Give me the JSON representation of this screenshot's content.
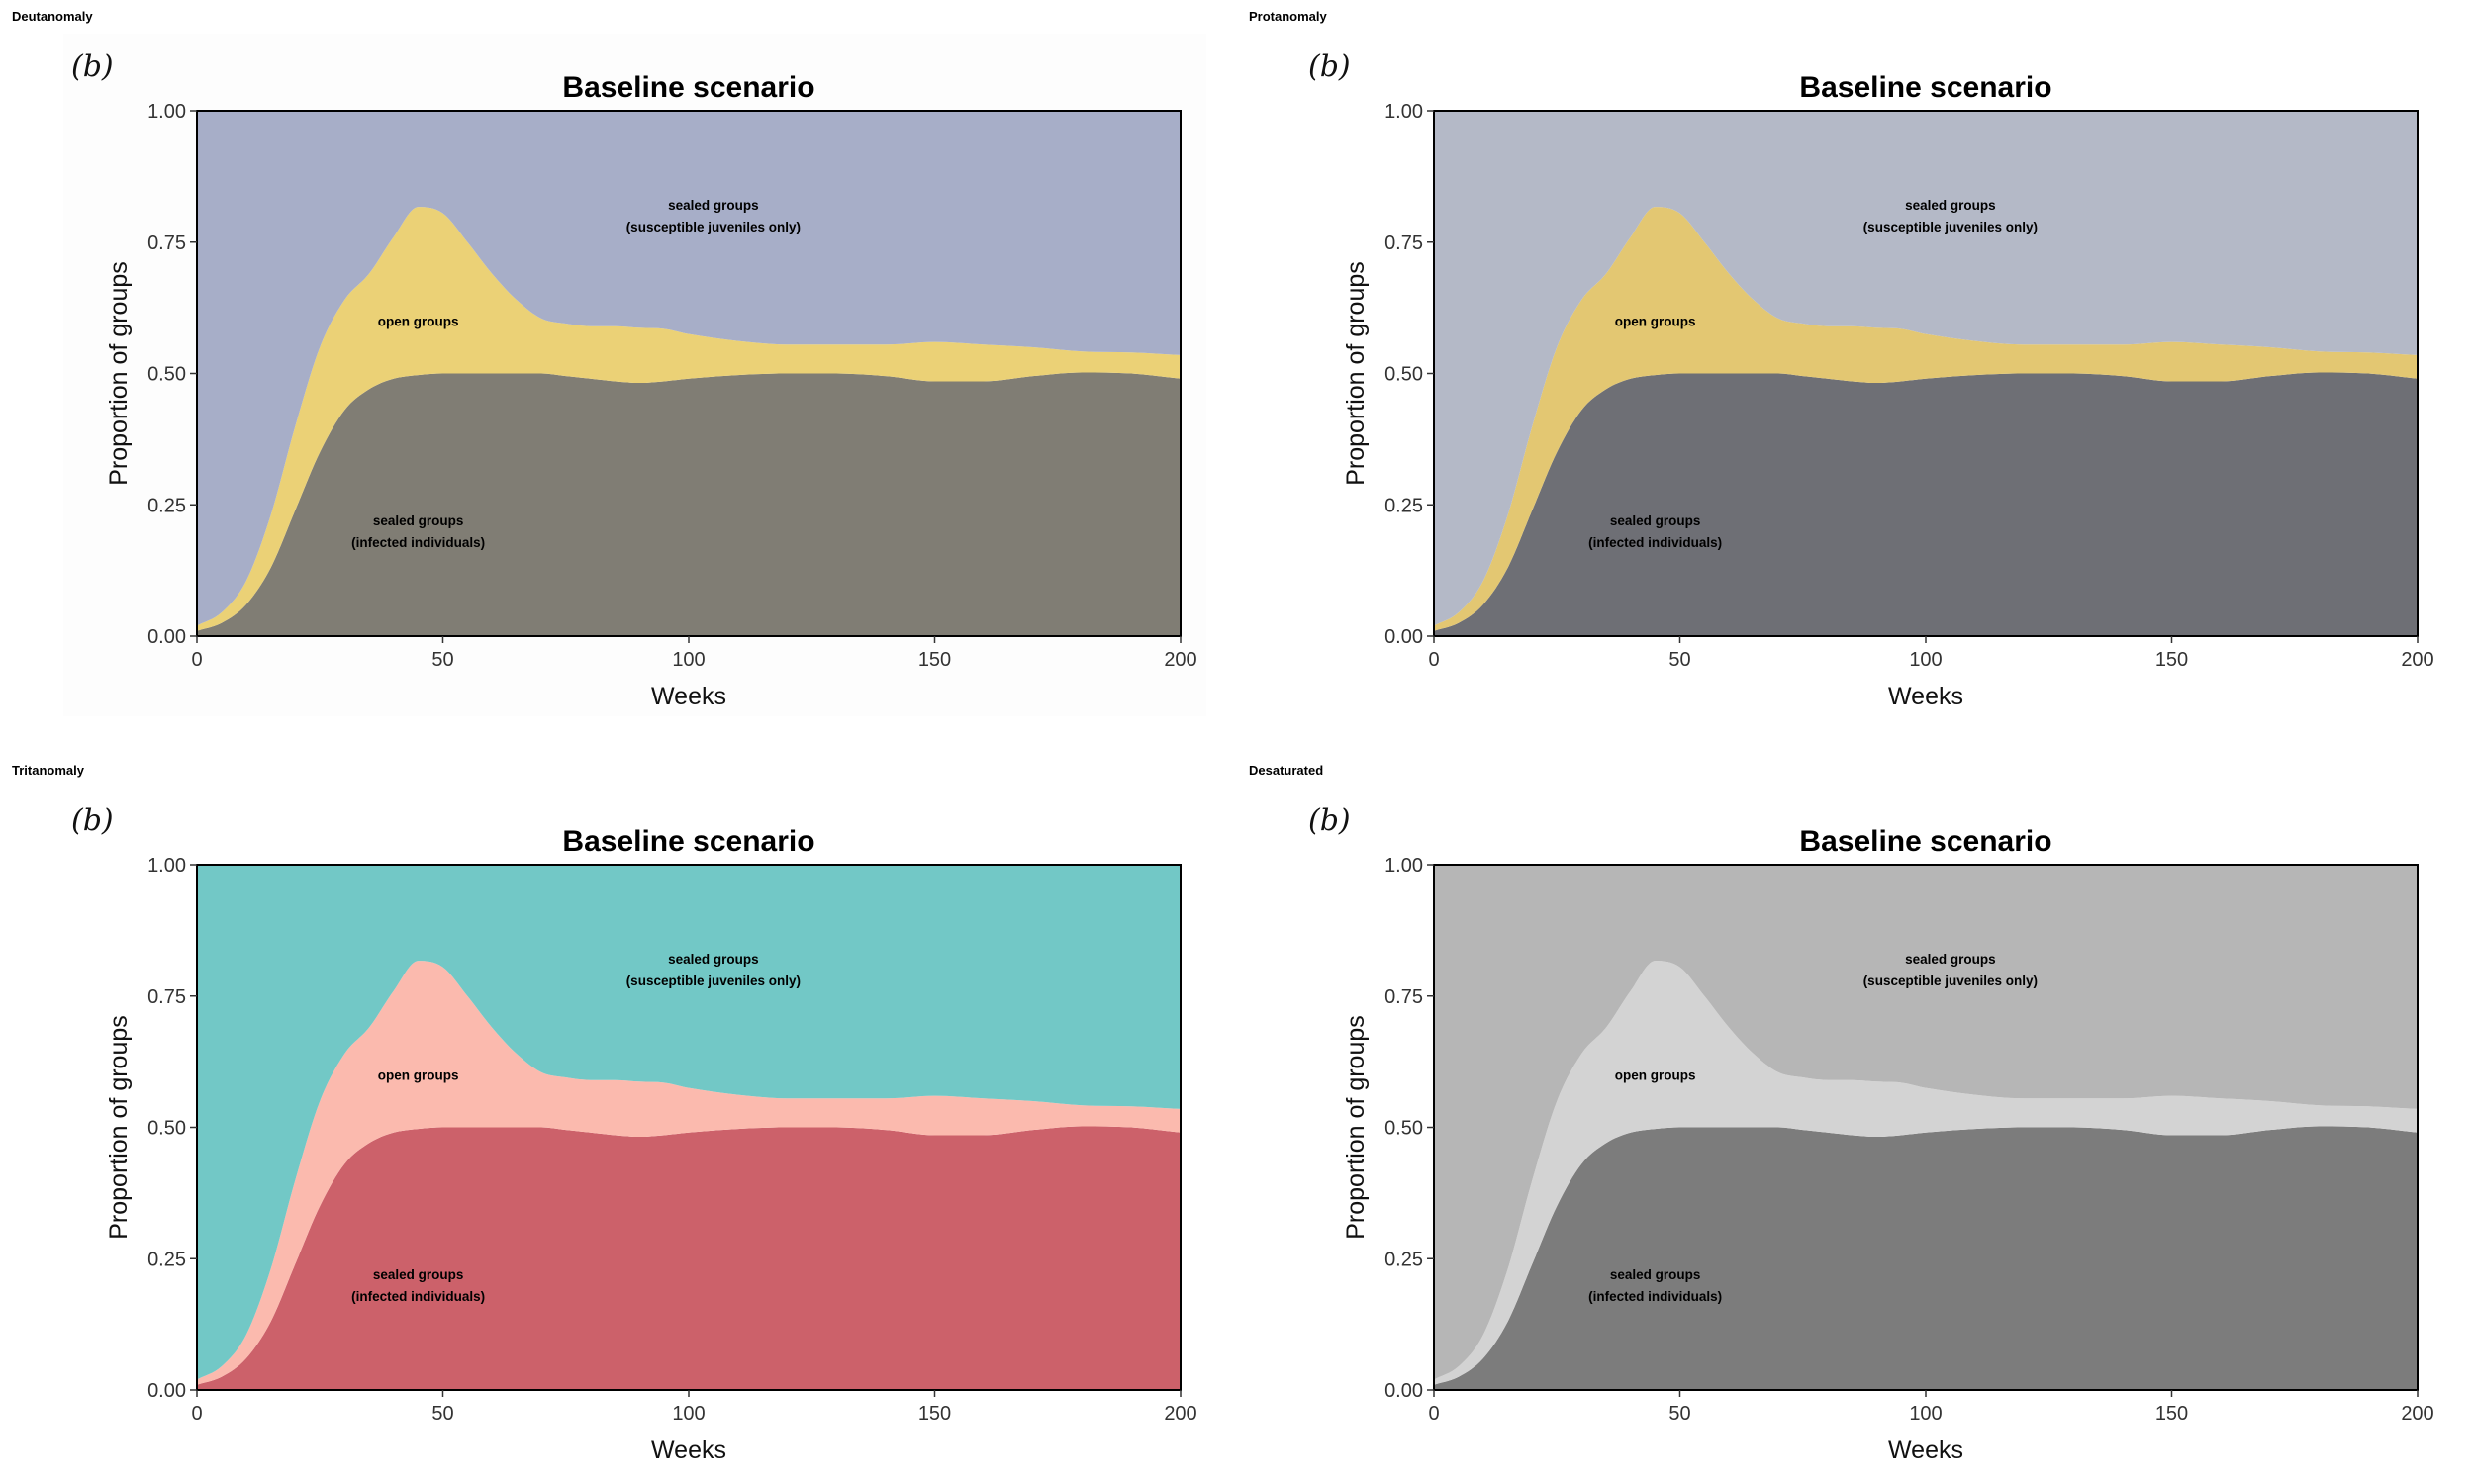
{
  "figure": {
    "panels": [
      {
        "simulation": "Deutanomaly",
        "panel_tag": "(b)",
        "colors": {
          "sealed_juveniles": "#a7aec8",
          "open": "#ebd176",
          "sealed_infected": "#807d74",
          "panel_bg": "#fdfdfd"
        }
      },
      {
        "simulation": "Protanomaly",
        "panel_tag": "(b)",
        "colors": {
          "sealed_juveniles": "#b4b9c7",
          "open": "#e3c772",
          "sealed_infected": "#6e6f75",
          "panel_bg": "#ffffff"
        }
      },
      {
        "simulation": "Tritanomaly",
        "panel_tag": "(b)",
        "colors": {
          "sealed_juveniles": "#72c8c6",
          "open": "#fbbaae",
          "sealed_infected": "#cc616a",
          "panel_bg": "#ffffff"
        }
      },
      {
        "simulation": "Desaturated",
        "panel_tag": "(b)",
        "colors": {
          "sealed_juveniles": "#b6b6b6",
          "open": "#d3d3d3",
          "sealed_infected": "#7c7c7c",
          "panel_bg": "#ffffff"
        }
      }
    ]
  },
  "chart_data": {
    "type": "area",
    "stacked": true,
    "title": "Baseline scenario",
    "xlabel": "Weeks",
    "ylabel": "Proportion of groups",
    "xlim": [
      0,
      200
    ],
    "ylim": [
      0,
      1
    ],
    "xticks": [
      0,
      50,
      100,
      150,
      200
    ],
    "xtick_labels": [
      "0",
      "50",
      "100",
      "150",
      "200"
    ],
    "yticks": [
      0,
      0.25,
      0.5,
      0.75,
      1
    ],
    "ytick_labels": [
      "0.00",
      "0.25",
      "0.50",
      "0.75",
      "1.00"
    ],
    "x": [
      0,
      5,
      10,
      15,
      20,
      25,
      30,
      35,
      40,
      45,
      50,
      55,
      60,
      65,
      70,
      75,
      80,
      85,
      90,
      95,
      100,
      110,
      120,
      130,
      140,
      150,
      160,
      170,
      180,
      190,
      200
    ],
    "series": [
      {
        "name": "sealed groups (infected individuals)",
        "values": [
          0.01,
          0.025,
          0.06,
          0.13,
          0.24,
          0.35,
          0.43,
          0.47,
          0.49,
          0.497,
          0.5,
          0.5,
          0.5,
          0.5,
          0.5,
          0.495,
          0.49,
          0.485,
          0.482,
          0.485,
          0.49,
          0.497,
          0.5,
          0.5,
          0.495,
          0.485,
          0.485,
          0.495,
          0.502,
          0.5,
          0.49
        ]
      },
      {
        "name": "open groups",
        "values": [
          0.01,
          0.02,
          0.045,
          0.1,
          0.16,
          0.2,
          0.21,
          0.22,
          0.27,
          0.32,
          0.305,
          0.25,
          0.19,
          0.14,
          0.105,
          0.1,
          0.1,
          0.105,
          0.105,
          0.1,
          0.085,
          0.065,
          0.055,
          0.055,
          0.06,
          0.075,
          0.07,
          0.055,
          0.04,
          0.04,
          0.045
        ]
      },
      {
        "name": "sealed groups (susceptible juveniles only)",
        "values": [
          0.98,
          0.955,
          0.895,
          0.77,
          0.6,
          0.45,
          0.36,
          0.31,
          0.24,
          0.183,
          0.195,
          0.25,
          0.31,
          0.36,
          0.395,
          0.405,
          0.41,
          0.41,
          0.413,
          0.415,
          0.425,
          0.438,
          0.445,
          0.445,
          0.445,
          0.44,
          0.445,
          0.45,
          0.458,
          0.46,
          0.465
        ]
      }
    ],
    "annotations": {
      "sealed_juveniles": [
        "sealed groups",
        "(susceptible juveniles only)"
      ],
      "open": [
        "open groups"
      ],
      "sealed_infected": [
        "sealed groups",
        "(infected individuals)"
      ]
    },
    "annotation_positions": {
      "sealed_juveniles": [
        105,
        0.8
      ],
      "open": [
        45,
        0.6
      ],
      "sealed_infected": [
        45,
        0.2
      ]
    }
  }
}
